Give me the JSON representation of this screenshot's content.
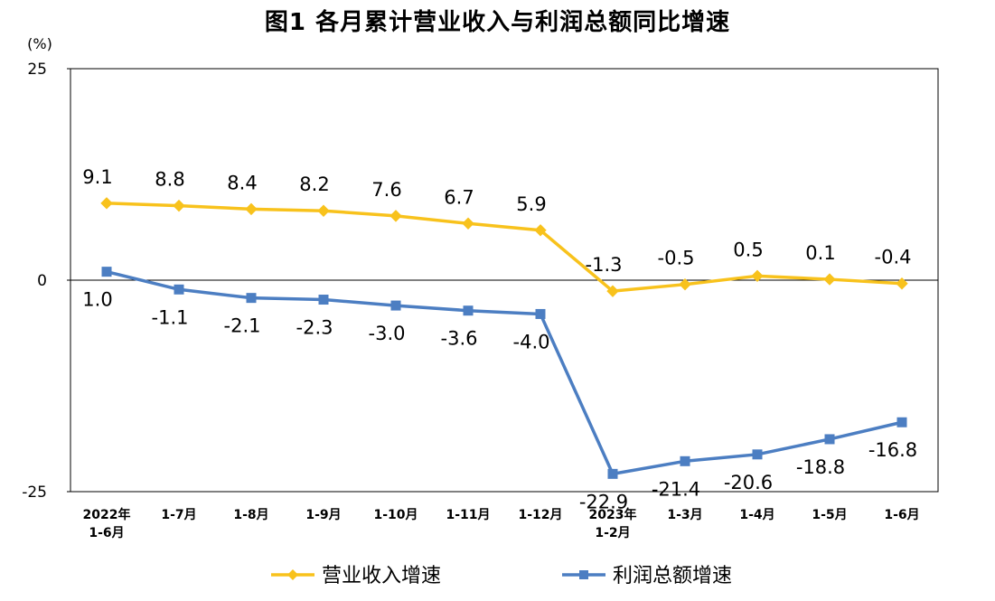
{
  "chart_data": {
    "type": "line",
    "title": "图1  各月累计营业收入与利润总额同比增速",
    "ylabel": "(%)",
    "ylim": [
      -25,
      25
    ],
    "yticks": [
      25,
      0,
      -25
    ],
    "grid": false,
    "legend_position": "bottom",
    "categories": [
      [
        "2022年",
        "1-6月"
      ],
      [
        "1-7月"
      ],
      [
        "1-8月"
      ],
      [
        "1-9月"
      ],
      [
        "1-10月"
      ],
      [
        "1-11月"
      ],
      [
        "1-12月"
      ],
      [
        "2023年",
        "1-2月"
      ],
      [
        "1-3月"
      ],
      [
        "1-4月"
      ],
      [
        "1-5月"
      ],
      [
        "1-6月"
      ]
    ],
    "series": [
      {
        "name": "营业收入增速",
        "color": "#F8C21C",
        "marker": "diamond",
        "values": [
          9.1,
          8.8,
          8.4,
          8.2,
          7.6,
          6.7,
          5.9,
          -1.3,
          -0.5,
          0.5,
          0.1,
          -0.4
        ],
        "labels": [
          "9.1",
          "8.8",
          "8.4",
          "8.2",
          "7.6",
          "6.7",
          "5.9",
          "-1.3",
          "-0.5",
          "0.5",
          "0.1",
          "-0.4"
        ]
      },
      {
        "name": "利润总额增速",
        "color": "#4C7EC2",
        "marker": "square",
        "values": [
          1.0,
          -1.1,
          -2.1,
          -2.3,
          -3.0,
          -3.6,
          -4.0,
          -22.9,
          -21.4,
          -20.6,
          -18.8,
          -16.8
        ],
        "labels": [
          "1.0",
          "-1.1",
          "-2.1",
          "-2.3",
          "-3.0",
          "-3.6",
          "-4.0",
          "-22.9",
          "-21.4",
          "-20.6",
          "-18.8",
          "-16.8"
        ]
      }
    ]
  }
}
